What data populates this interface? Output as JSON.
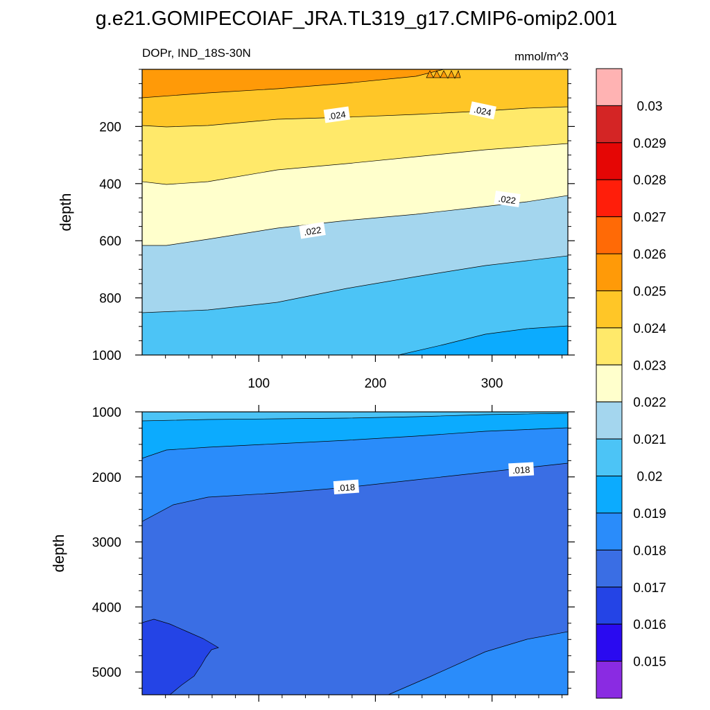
{
  "chart_data": {
    "type": "contour",
    "title": "g.e21.GOMIPECOIAF_JRA.TL319_g17.CMIP6-omip2.001",
    "subtitle_left": "DOPr, IND_18S-30N",
    "units": "mmol/m^3",
    "colorbar": {
      "levels": [
        0.015,
        0.016,
        0.017,
        0.018,
        0.019,
        0.02,
        0.021,
        0.022,
        0.023,
        0.024,
        0.025,
        0.026,
        0.027,
        0.028,
        0.029,
        0.03
      ],
      "labels": [
        "0.015",
        "0.016",
        "0.017",
        "0.018",
        "0.019",
        "0.02",
        "0.021",
        "0.022",
        "0.023",
        "0.024",
        "0.025",
        "0.026",
        "0.027",
        "0.028",
        "0.029",
        "0.03"
      ],
      "colors": [
        "#8a2be2",
        "#2a0af0",
        "#2444e6",
        "#3a6ee4",
        "#2a8cfa",
        "#0cabfe",
        "#4cc4f6",
        "#a4d6ee",
        "#ffffcc",
        "#ffe96a",
        "#ffc627",
        "#ff9a08",
        "#ff6a06",
        "#ff1e0a",
        "#e50605",
        "#d42525",
        "#ffb3b3"
      ]
    },
    "panels": [
      {
        "name": "upper",
        "xlim": [
          0,
          365
        ],
        "ylim": [
          1000,
          0
        ],
        "ylabel": "depth",
        "xticks": [
          100,
          200,
          300
        ],
        "xtick_labels": [
          "100",
          "200",
          "300"
        ],
        "yticks": [
          200,
          400,
          600,
          800,
          1000
        ],
        "ytick_labels": [
          "200",
          "400",
          "600",
          "800",
          "1000"
        ],
        "contour_labels": [
          {
            "text": ".024",
            "x": 167,
            "y": 160
          },
          {
            "text": ".024",
            "x": 292,
            "y": 145
          },
          {
            "text": ".022",
            "x": 146,
            "y": 565
          },
          {
            "text": ".022",
            "x": 313,
            "y": 455
          }
        ]
      },
      {
        "name": "lower",
        "xlim": [
          0,
          365
        ],
        "ylim": [
          5350,
          1000
        ],
        "ylabel": "depth",
        "yticks": [
          1000,
          2000,
          3000,
          4000,
          5000
        ],
        "ytick_labels": [
          "1000",
          "2000",
          "3000",
          "4000",
          "5000"
        ],
        "contour_labels": [
          {
            "text": ".018",
            "x": 175,
            "y": 2160
          },
          {
            "text": ".018",
            "x": 325,
            "y": 1890
          }
        ]
      }
    ]
  }
}
